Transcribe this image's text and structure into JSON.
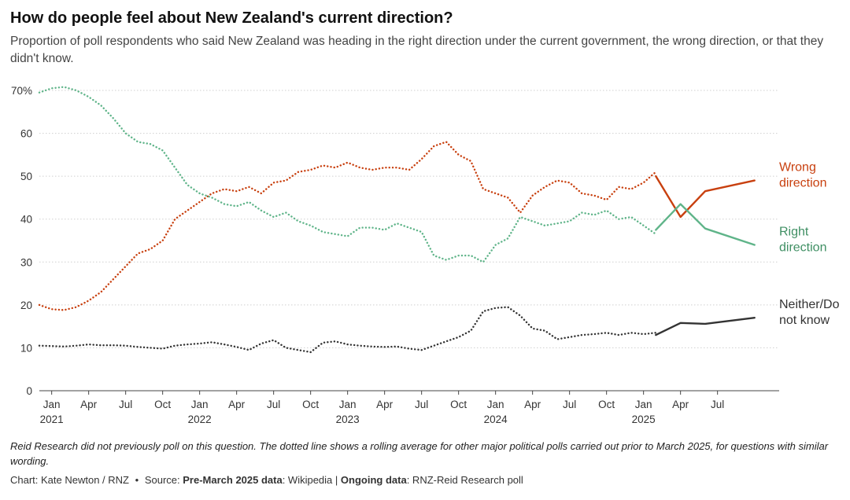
{
  "header": {
    "title": "How do people feel about New Zealand's current direction?",
    "subtitle": "Proportion of poll respondents who said New Zealand was heading in the right direction under the current government, the wrong direction, or that they didn't know."
  },
  "footer": {
    "note": "Reid Research did not previously poll on this question. The dotted line shows a rolling average for other major political polls carried out prior to March 2025, for questions with similar wording.",
    "chart_credit": "Chart: Kate Newton / RNZ",
    "bullet": "•",
    "source_prefix": "Source:",
    "source1_label": "Pre-March 2025 data",
    "source1_value": ": Wikipedia",
    "divider": "|",
    "source2_label": "Ongoing data",
    "source2_value": ": RNZ-Reid Research poll"
  },
  "chart_data": {
    "type": "line",
    "x_unit": "month",
    "xlim": [
      "2020-12",
      "2025-12"
    ],
    "ylim": [
      0,
      70
    ],
    "yticks": [
      0,
      10,
      20,
      30,
      40,
      50,
      60,
      70
    ],
    "ytick_labels": [
      "0",
      "10",
      "20",
      "30",
      "40",
      "50",
      "60",
      "70%"
    ],
    "xticks": [
      {
        "date": "2021-01",
        "month": "Jan",
        "year": "2021"
      },
      {
        "date": "2021-04",
        "month": "Apr"
      },
      {
        "date": "2021-07",
        "month": "Jul"
      },
      {
        "date": "2021-10",
        "month": "Oct"
      },
      {
        "date": "2022-01",
        "month": "Jan",
        "year": "2022"
      },
      {
        "date": "2022-04",
        "month": "Apr"
      },
      {
        "date": "2022-07",
        "month": "Jul"
      },
      {
        "date": "2022-10",
        "month": "Oct"
      },
      {
        "date": "2023-01",
        "month": "Jan",
        "year": "2023"
      },
      {
        "date": "2023-04",
        "month": "Apr"
      },
      {
        "date": "2023-07",
        "month": "Jul"
      },
      {
        "date": "2023-10",
        "month": "Oct"
      },
      {
        "date": "2024-01",
        "month": "Jan",
        "year": "2024"
      },
      {
        "date": "2024-04",
        "month": "Apr"
      },
      {
        "date": "2024-07",
        "month": "Jul"
      },
      {
        "date": "2024-10",
        "month": "Oct"
      },
      {
        "date": "2025-01",
        "month": "Jan",
        "year": "2025"
      },
      {
        "date": "2025-04",
        "month": "Apr"
      },
      {
        "date": "2025-07",
        "month": "Jul"
      }
    ],
    "grid": "horizontal",
    "legend": "direct-labels-right",
    "series": [
      {
        "label_lines": [
          "Wrong",
          "direction"
        ],
        "color": "#c8400f",
        "segments": [
          {
            "style": "dotted",
            "points": [
              [
                "2020-12",
                20
              ],
              [
                "2021-01",
                19
              ],
              [
                "2021-02",
                18.8
              ],
              [
                "2021-03",
                19.5
              ],
              [
                "2021-04",
                21
              ],
              [
                "2021-05",
                23
              ],
              [
                "2021-06",
                26
              ],
              [
                "2021-07",
                29
              ],
              [
                "2021-08",
                32
              ],
              [
                "2021-09",
                33
              ],
              [
                "2021-10",
                35
              ],
              [
                "2021-11",
                40
              ],
              [
                "2021-12",
                42
              ],
              [
                "2022-01",
                44
              ],
              [
                "2022-02",
                46
              ],
              [
                "2022-03",
                47
              ],
              [
                "2022-04",
                46.5
              ],
              [
                "2022-05",
                47.5
              ],
              [
                "2022-06",
                46
              ],
              [
                "2022-07",
                48.5
              ],
              [
                "2022-08",
                49
              ],
              [
                "2022-09",
                51
              ],
              [
                "2022-10",
                51.5
              ],
              [
                "2022-11",
                52.5
              ],
              [
                "2022-12",
                52
              ],
              [
                "2023-01",
                53.2
              ],
              [
                "2023-02",
                52
              ],
              [
                "2023-03",
                51.5
              ],
              [
                "2023-04",
                52
              ],
              [
                "2023-05",
                52
              ],
              [
                "2023-06",
                51.5
              ],
              [
                "2023-07",
                54
              ],
              [
                "2023-08",
                57
              ],
              [
                "2023-09",
                58
              ],
              [
                "2023-10",
                55
              ],
              [
                "2023-11",
                53.5
              ],
              [
                "2023-12",
                47
              ],
              [
                "2024-01",
                46
              ],
              [
                "2024-02",
                45
              ],
              [
                "2024-03",
                41.5
              ],
              [
                "2024-04",
                45.5
              ],
              [
                "2024-05",
                47.5
              ],
              [
                "2024-06",
                49
              ],
              [
                "2024-07",
                48.5
              ],
              [
                "2024-08",
                46
              ],
              [
                "2024-09",
                45.5
              ],
              [
                "2024-10",
                44.5
              ],
              [
                "2024-11",
                47.5
              ],
              [
                "2024-12",
                47
              ],
              [
                "2025-01",
                48.5
              ],
              [
                "2025-02",
                51
              ]
            ]
          },
          {
            "style": "solid",
            "points": [
              [
                "2025-02",
                50
              ],
              [
                "2025-04",
                40.5
              ],
              [
                "2025-06",
                46.5
              ],
              [
                "2025-10",
                49
              ]
            ]
          }
        ]
      },
      {
        "label_lines": [
          "Right",
          "direction"
        ],
        "color": "#5fb489",
        "segments": [
          {
            "style": "dotted",
            "points": [
              [
                "2020-12",
                69.5
              ],
              [
                "2021-01",
                70.5
              ],
              [
                "2021-02",
                70.8
              ],
              [
                "2021-03",
                70
              ],
              [
                "2021-04",
                68.5
              ],
              [
                "2021-05",
                66.5
              ],
              [
                "2021-06",
                63.5
              ],
              [
                "2021-07",
                60
              ],
              [
                "2021-08",
                58
              ],
              [
                "2021-09",
                57.5
              ],
              [
                "2021-10",
                56
              ],
              [
                "2021-11",
                52
              ],
              [
                "2021-12",
                48
              ],
              [
                "2022-01",
                46
              ],
              [
                "2022-02",
                45
              ],
              [
                "2022-03",
                43.5
              ],
              [
                "2022-04",
                43
              ],
              [
                "2022-05",
                44
              ],
              [
                "2022-06",
                42
              ],
              [
                "2022-07",
                40.5
              ],
              [
                "2022-08",
                41.5
              ],
              [
                "2022-09",
                39.5
              ],
              [
                "2022-10",
                38.5
              ],
              [
                "2022-11",
                37
              ],
              [
                "2022-12",
                36.5
              ],
              [
                "2023-01",
                36
              ],
              [
                "2023-02",
                38
              ],
              [
                "2023-03",
                38
              ],
              [
                "2023-04",
                37.5
              ],
              [
                "2023-05",
                39
              ],
              [
                "2023-06",
                38
              ],
              [
                "2023-07",
                37
              ],
              [
                "2023-08",
                31.5
              ],
              [
                "2023-09",
                30.5
              ],
              [
                "2023-10",
                31.5
              ],
              [
                "2023-11",
                31.5
              ],
              [
                "2023-12",
                30
              ],
              [
                "2024-01",
                34
              ],
              [
                "2024-02",
                35.5
              ],
              [
                "2024-03",
                40.5
              ],
              [
                "2024-04",
                39.5
              ],
              [
                "2024-05",
                38.5
              ],
              [
                "2024-06",
                39
              ],
              [
                "2024-07",
                39.5
              ],
              [
                "2024-08",
                41.5
              ],
              [
                "2024-09",
                41
              ],
              [
                "2024-10",
                42
              ],
              [
                "2024-11",
                40
              ],
              [
                "2024-12",
                40.5
              ],
              [
                "2025-01",
                38.5
              ],
              [
                "2025-02",
                36.5
              ]
            ]
          },
          {
            "style": "solid",
            "points": [
              [
                "2025-02",
                37.5
              ],
              [
                "2025-04",
                43.5
              ],
              [
                "2025-06",
                37.8
              ],
              [
                "2025-10",
                34
              ]
            ]
          }
        ]
      },
      {
        "label_lines": [
          "Neither/Do",
          "not know"
        ],
        "color": "#333333",
        "segments": [
          {
            "style": "dotted",
            "points": [
              [
                "2020-12",
                10.5
              ],
              [
                "2021-01",
                10.4
              ],
              [
                "2021-02",
                10.3
              ],
              [
                "2021-03",
                10.5
              ],
              [
                "2021-04",
                10.8
              ],
              [
                "2021-05",
                10.6
              ],
              [
                "2021-06",
                10.6
              ],
              [
                "2021-07",
                10.5
              ],
              [
                "2021-08",
                10.2
              ],
              [
                "2021-09",
                10
              ],
              [
                "2021-10",
                9.8
              ],
              [
                "2021-11",
                10.5
              ],
              [
                "2021-12",
                10.8
              ],
              [
                "2022-01",
                11
              ],
              [
                "2022-02",
                11.3
              ],
              [
                "2022-03",
                10.8
              ],
              [
                "2022-04",
                10.2
              ],
              [
                "2022-05",
                9.5
              ],
              [
                "2022-06",
                11
              ],
              [
                "2022-07",
                11.8
              ],
              [
                "2022-08",
                10
              ],
              [
                "2022-09",
                9.5
              ],
              [
                "2022-10",
                9
              ],
              [
                "2022-11",
                11.2
              ],
              [
                "2022-12",
                11.5
              ],
              [
                "2023-01",
                10.8
              ],
              [
                "2023-02",
                10.5
              ],
              [
                "2023-03",
                10.3
              ],
              [
                "2023-04",
                10.2
              ],
              [
                "2023-05",
                10.3
              ],
              [
                "2023-06",
                9.8
              ],
              [
                "2023-07",
                9.5
              ],
              [
                "2023-08",
                10.5
              ],
              [
                "2023-09",
                11.5
              ],
              [
                "2023-10",
                12.5
              ],
              [
                "2023-11",
                14
              ],
              [
                "2023-12",
                18.5
              ],
              [
                "2024-01",
                19.3
              ],
              [
                "2024-02",
                19.5
              ],
              [
                "2024-03",
                17.5
              ],
              [
                "2024-04",
                14.5
              ],
              [
                "2024-05",
                14
              ],
              [
                "2024-06",
                12
              ],
              [
                "2024-07",
                12.5
              ],
              [
                "2024-08",
                13
              ],
              [
                "2024-09",
                13.2
              ],
              [
                "2024-10",
                13.5
              ],
              [
                "2024-11",
                13
              ],
              [
                "2024-12",
                13.5
              ],
              [
                "2025-01",
                13.2
              ],
              [
                "2025-02",
                13.5
              ]
            ]
          },
          {
            "style": "solid",
            "points": [
              [
                "2025-02",
                13
              ],
              [
                "2025-04",
                15.8
              ],
              [
                "2025-06",
                15.6
              ],
              [
                "2025-10",
                17
              ]
            ]
          }
        ]
      }
    ]
  }
}
